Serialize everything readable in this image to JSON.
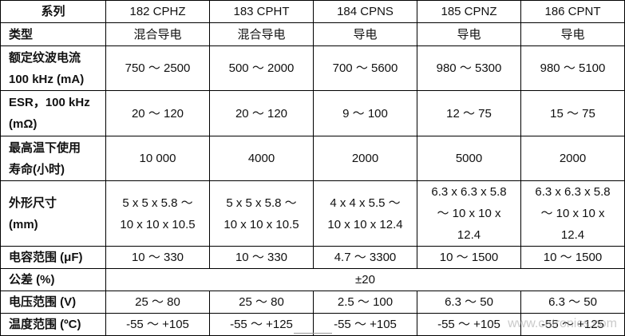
{
  "table": {
    "header": [
      "系列",
      "182 CPHZ",
      "183 CPHT",
      "184 CPNS",
      "185 CPNZ",
      "186 CPNT"
    ],
    "rows": [
      {
        "label": [
          "类型"
        ],
        "cells": [
          [
            "混合导电"
          ],
          [
            "混合导电"
          ],
          [
            "导电"
          ],
          [
            "导电"
          ],
          [
            "导电"
          ]
        ]
      },
      {
        "label": [
          "额定纹波电流",
          "100 kHz (mA)"
        ],
        "cells": [
          [
            "750 ～ 2500"
          ],
          [
            "500 ～ 2000"
          ],
          [
            "700 ～ 5600"
          ],
          [
            "980 ～ 5300"
          ],
          [
            "980 ～ 5100"
          ]
        ]
      },
      {
        "label": [
          "ESR，100 kHz",
          "(mΩ)"
        ],
        "cells": [
          [
            "20 ～ 120"
          ],
          [
            "20 ～ 120"
          ],
          [
            "9 ～ 100"
          ],
          [
            "12 ～ 75"
          ],
          [
            "15 ～ 75"
          ]
        ]
      },
      {
        "label": [
          "最高温下使用",
          "寿命(小时)"
        ],
        "cells": [
          [
            "10 000"
          ],
          [
            "4000"
          ],
          [
            "2000"
          ],
          [
            "5000"
          ],
          [
            "2000"
          ]
        ]
      },
      {
        "label": [
          "外形尺寸",
          "(mm)"
        ],
        "cells": [
          [
            "5 x 5 x 5.8 ～",
            "10 x 10 x 10.5"
          ],
          [
            "5 x 5 x 5.8 ～",
            "10 x 10 x 10.5"
          ],
          [
            "4 x 4 x 5.5 ～",
            "10 x 10 x 12.4"
          ],
          [
            "6.3 x 6.3 x 5.8",
            "～ 10 x 10 x",
            "12.4"
          ],
          [
            "6.3 x 6.3 x 5.8",
            "～ 10 x 10 x",
            "12.4"
          ]
        ]
      },
      {
        "label": [
          "电容范围 (μF)"
        ],
        "cells": [
          [
            "10 ～ 330"
          ],
          [
            "10 ～ 330"
          ],
          [
            "4.7 ～ 3300"
          ],
          [
            "10 ～ 1500"
          ],
          [
            "10 ～ 1500"
          ]
        ]
      },
      {
        "label": [
          "公差 (%)"
        ],
        "cells": [
          [
            "±20"
          ]
        ]
      },
      {
        "label": [
          "电压范围 (V)"
        ],
        "cells": [
          [
            "25 ～ 80"
          ],
          [
            "25 ～ 80"
          ],
          [
            "2.5 ～ 100"
          ],
          [
            "6.3 ～ 50"
          ],
          [
            "6.3 ～ 50"
          ]
        ]
      },
      {
        "label": [
          "温度范围 (ºC)"
        ],
        "cells": [
          [
            "-55 ～ +105"
          ],
          [
            "-55 ～ +125"
          ],
          [
            "-55 ～ +105"
          ],
          [
            "-55 ～ +105"
          ],
          [
            "-55 ～ +125"
          ]
        ]
      }
    ]
  },
  "watermark": "www.cntronics.com"
}
